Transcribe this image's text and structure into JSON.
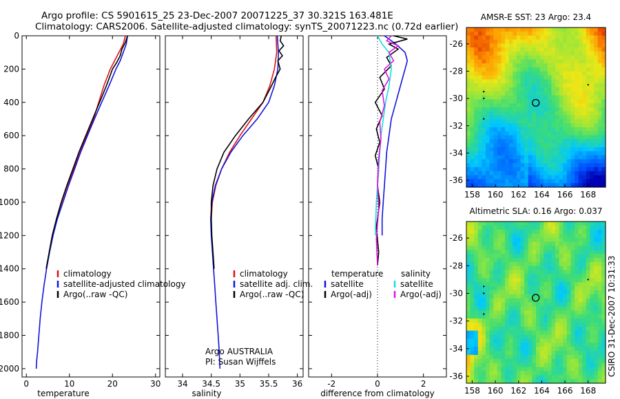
{
  "header": {
    "line1": "Argo profile: CS 5901615_25 23-Dec-2007 20071225_37 30.321S 163.481E",
    "line2": "Climatology: CARS2006. Satellite-adjusted climatology: synTS_20071223.nc (0.72d earlier)"
  },
  "side_label": "CSIRO 31-Dec-2007 10:31:33",
  "colors": {
    "climatology": "#dd1111",
    "satellite": "#1111dd",
    "argo": "#000000",
    "cyan": "#11dddd",
    "magenta": "#dd11dd"
  },
  "chart_data": [
    {
      "type": "line",
      "xlabel": "temperature",
      "xlim": [
        -1,
        31
      ],
      "ylim": [
        2050,
        0
      ],
      "xticks": [
        0,
        10,
        20,
        30
      ],
      "yticks": [
        0,
        200,
        400,
        600,
        800,
        1000,
        1200,
        1400,
        1600,
        1800,
        2000
      ],
      "legend": [
        "climatology",
        "satellite-adjusted climatology",
        "Argo(..raw -QC)"
      ],
      "series": [
        {
          "name": "climatology",
          "color": "climatology",
          "x": [
            23.0,
            22.5,
            21.5,
            20.5,
            19.5,
            18.0,
            16.8,
            15.6,
            14.0,
            12.5,
            11.0,
            9.5,
            8.2,
            7.0
          ],
          "y": [
            0,
            50,
            100,
            150,
            200,
            300,
            400,
            500,
            600,
            700,
            800,
            900,
            1000,
            1100
          ]
        },
        {
          "name": "satellite-adjusted climatology",
          "color": "satellite",
          "x": [
            23.5,
            23.2,
            22.5,
            21.8,
            20.8,
            19.2,
            17.5,
            15.8,
            14.2,
            12.6,
            11.2,
            9.8,
            8.5,
            7.2,
            6.2,
            5.4,
            4.7,
            4.1,
            3.6,
            3.2,
            2.9,
            2.6,
            2.4,
            2.3
          ],
          "y": [
            0,
            50,
            100,
            150,
            200,
            300,
            400,
            500,
            600,
            700,
            800,
            900,
            1000,
            1100,
            1200,
            1300,
            1400,
            1500,
            1600,
            1700,
            1800,
            1900,
            1950,
            2000
          ]
        },
        {
          "name": "Argo(..raw -QC)",
          "color": "argo",
          "x": [
            23.5,
            23.0,
            22.2,
            21.8,
            21.0,
            20.0,
            18.6,
            17.0,
            15.4,
            13.8,
            12.2,
            10.8,
            9.4,
            8.1,
            7.0,
            6.0,
            5.3,
            4.6
          ],
          "y": [
            0,
            40,
            80,
            120,
            160,
            200,
            300,
            400,
            500,
            600,
            700,
            800,
            900,
            1000,
            1100,
            1200,
            1300,
            1400
          ]
        }
      ]
    },
    {
      "type": "line",
      "xlabel": "salinity",
      "xlim": [
        33.7,
        36.1
      ],
      "ylim": [
        2050,
        0
      ],
      "xticks": [
        34,
        34.5,
        35,
        35.5,
        36
      ],
      "legend": [
        "climatology",
        "satellite adj. clim.",
        "Argo(..raw -QC)"
      ],
      "annotations": [
        "Argo AUSTRALIA",
        "PI: Susan Wijffels"
      ],
      "series": [
        {
          "name": "climatology",
          "color": "climatology",
          "x": [
            35.63,
            35.64,
            35.6,
            35.52,
            35.4,
            35.2,
            35.0,
            34.82,
            34.68,
            34.58,
            34.52,
            34.5
          ],
          "y": [
            0,
            100,
            200,
            300,
            400,
            500,
            600,
            700,
            800,
            900,
            1000,
            1100
          ]
        },
        {
          "name": "satellite adj. clim.",
          "color": "satellite",
          "x": [
            35.65,
            35.67,
            35.66,
            35.6,
            35.5,
            35.3,
            35.05,
            34.84,
            34.68,
            34.57,
            34.51,
            34.49,
            34.5,
            34.52,
            34.54,
            34.56,
            34.58,
            34.6,
            34.62,
            34.64,
            34.65
          ],
          "y": [
            0,
            100,
            200,
            300,
            400,
            500,
            600,
            700,
            800,
            900,
            1000,
            1100,
            1200,
            1300,
            1400,
            1500,
            1600,
            1700,
            1800,
            1900,
            2000
          ]
        },
        {
          "name": "Argo(..raw -QC)",
          "color": "argo",
          "x": [
            35.72,
            35.7,
            35.76,
            35.68,
            35.74,
            35.66,
            35.7,
            35.62,
            35.55,
            35.4,
            35.15,
            34.92,
            34.72,
            34.6,
            34.53,
            34.5,
            34.5,
            34.51,
            34.53,
            34.55
          ],
          "y": [
            0,
            30,
            60,
            90,
            120,
            150,
            200,
            250,
            300,
            400,
            500,
            600,
            700,
            800,
            900,
            1000,
            1100,
            1200,
            1300,
            1400
          ]
        }
      ]
    },
    {
      "type": "line",
      "xlabel": "difference from climatology",
      "xlim": [
        -3,
        3
      ],
      "ylim": [
        2050,
        0
      ],
      "xticks": [
        -2,
        0,
        2
      ],
      "legend": [
        "temperature",
        "satellite",
        "Argo(-adj)",
        "salinity",
        "satellite",
        "Argo(-adj)"
      ],
      "series": [
        {
          "name": "temperature satellite",
          "color": "satellite",
          "x": [
            0.3,
            0.8,
            1.2,
            1.3,
            1.2,
            1.0,
            0.8,
            0.6,
            0.5,
            0.4,
            0.35,
            0.3,
            0.25,
            0.2,
            0.2
          ],
          "y": [
            0,
            50,
            100,
            150,
            200,
            300,
            400,
            500,
            600,
            700,
            800,
            900,
            1000,
            1100,
            1200
          ]
        },
        {
          "name": "temperature Argo(-adj)",
          "color": "argo",
          "x": [
            0.7,
            1.3,
            0.5,
            0.9,
            0.4,
            0.6,
            0.1,
            0.3,
            -0.1,
            0.2,
            -0.05,
            0.1,
            -0.1,
            0.05,
            0.0,
            0.1,
            -0.05,
            0.05,
            0.0
          ],
          "y": [
            0,
            20,
            50,
            80,
            130,
            180,
            250,
            320,
            400,
            480,
            560,
            640,
            720,
            800,
            900,
            1000,
            1150,
            1300,
            1380
          ]
        },
        {
          "name": "salinity satellite",
          "color": "cyan",
          "x": [
            0.0,
            0.2,
            0.5,
            0.6,
            0.5,
            0.35,
            0.25,
            0.15,
            0.1,
            0.05,
            0.0,
            -0.05,
            -0.1
          ],
          "y": [
            0,
            50,
            100,
            200,
            300,
            400,
            500,
            600,
            700,
            800,
            900,
            1000,
            1200
          ]
        },
        {
          "name": "salinity Argo(-adj)",
          "color": "magenta",
          "x": [
            0.6,
            0.4,
            0.9,
            0.5,
            0.7,
            0.3,
            0.5,
            0.2,
            0.3,
            0.1,
            0.15,
            0.05,
            0.0,
            0.05,
            -0.05,
            0.0
          ],
          "y": [
            0,
            30,
            60,
            100,
            150,
            200,
            260,
            330,
            420,
            520,
            620,
            740,
            880,
            1040,
            1220,
            1380
          ]
        }
      ]
    },
    {
      "type": "heatmap",
      "title": "AMSR-E SST: 23 Argo: 23.4",
      "xlim": [
        157.5,
        169.5
      ],
      "ylim": [
        -36.5,
        -24.8
      ],
      "xticks": [
        158,
        160,
        162,
        164,
        166,
        168
      ],
      "yticks": [
        -26,
        -28,
        -30,
        -32,
        -34,
        -36
      ],
      "float_position": {
        "lon": 163.481,
        "lat": -30.321
      }
    },
    {
      "type": "heatmap",
      "title": "Altimetric SLA: 0.16 Argo: 0.037",
      "xlim": [
        157.5,
        169.5
      ],
      "ylim": [
        -36.5,
        -24.8
      ],
      "xticks": [
        158,
        160,
        162,
        164,
        166,
        168
      ],
      "yticks": [
        -26,
        -28,
        -30,
        -32,
        -34,
        -36
      ],
      "float_position": {
        "lon": 163.481,
        "lat": -30.321
      }
    }
  ]
}
